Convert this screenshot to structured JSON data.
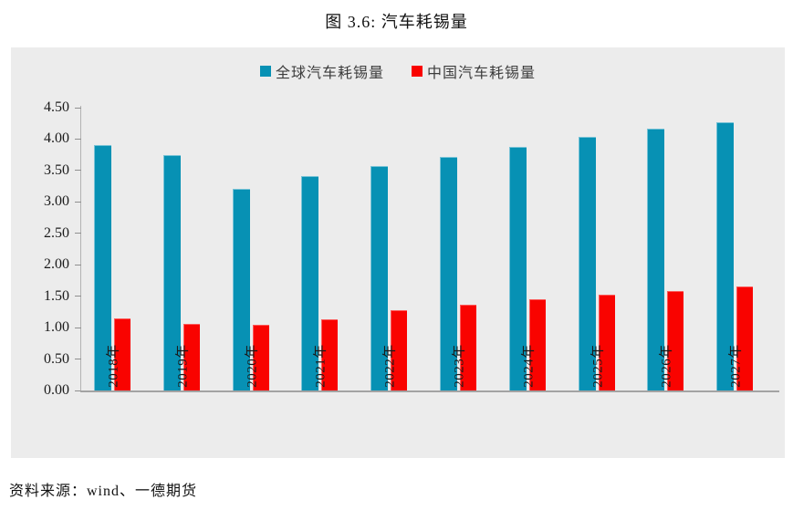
{
  "title": "图 3.6: 汽车耗锡量",
  "footer": {
    "source_label": "资料来源：wind、一德期货"
  },
  "colors": {
    "panel_background": "#ececec",
    "page_background": "#ffffff",
    "axis_line": "#a3a3a3",
    "tick": "#8f8f8f",
    "text": "#1a1a1a"
  },
  "chart_data": {
    "type": "bar",
    "title": "图 3.6: 汽车耗锡量",
    "categories": [
      "2018年",
      "2019年",
      "2020年",
      "2021年",
      "2022年",
      "2023年",
      "2024年",
      "2025年",
      "2026年",
      "2027年"
    ],
    "series": [
      {
        "name": "全球汽车耗锡量",
        "color": "#0791b4",
        "values": [
          3.9,
          3.75,
          3.21,
          3.41,
          3.57,
          3.72,
          3.88,
          4.03,
          4.17,
          4.27
        ]
      },
      {
        "name": "中国汽车耗锡量",
        "color": "#f90300",
        "values": [
          1.15,
          1.06,
          1.04,
          1.14,
          1.28,
          1.37,
          1.45,
          1.52,
          1.59,
          1.65
        ]
      }
    ],
    "xlabel": "",
    "ylabel": "",
    "ylim": [
      0,
      4.5
    ],
    "ytick_step": 0.5,
    "ytick_labels_top_to_bottom": [
      "4.50",
      "4.00",
      "3.50",
      "3.00",
      "2.50",
      "2.00",
      "1.50",
      "1.00",
      "0.50",
      "0.00"
    ],
    "legend_position": "top-center",
    "grid": false,
    "x_tick_label_rotation_deg": -90
  }
}
